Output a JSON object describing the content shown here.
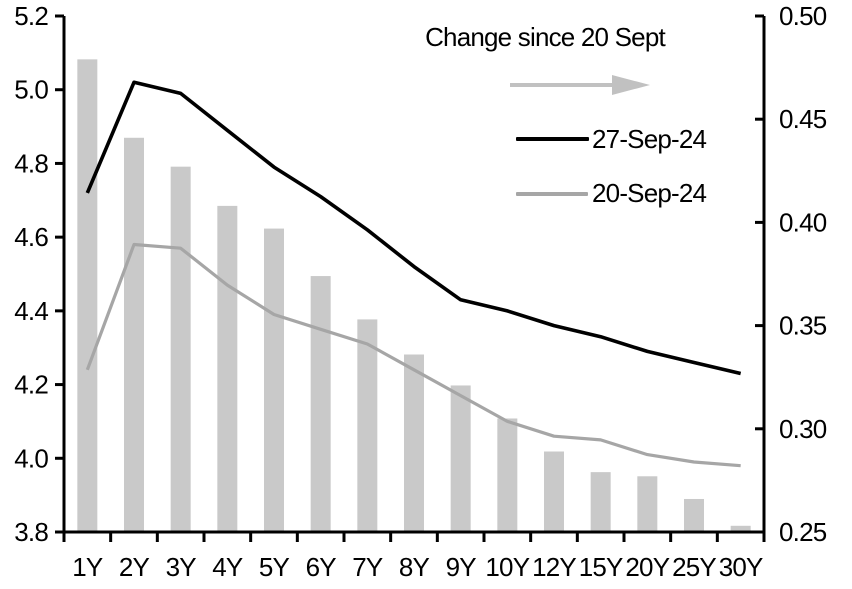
{
  "chart_data": {
    "type": "bar",
    "subtype": "combo-bar-and-lines",
    "categories": [
      "1Y",
      "2Y",
      "3Y",
      "4Y",
      "5Y",
      "6Y",
      "7Y",
      "8Y",
      "9Y",
      "10Y",
      "12Y",
      "15Y",
      "20Y",
      "25Y",
      "30Y"
    ],
    "bars": {
      "name": "Change since 20 Sept",
      "axis": "right",
      "color": "#c9c9c9",
      "values": [
        0.479,
        0.441,
        0.427,
        0.408,
        0.397,
        0.374,
        0.353,
        0.336,
        0.321,
        0.305,
        0.289,
        0.279,
        0.277,
        0.266,
        0.253
      ]
    },
    "lines": [
      {
        "name": "27-Sep-24",
        "axis": "left",
        "color": "#000000",
        "values": [
          4.72,
          5.02,
          4.99,
          4.89,
          4.79,
          4.71,
          4.62,
          4.52,
          4.43,
          4.4,
          4.36,
          4.33,
          4.29,
          4.26,
          4.23
        ]
      },
      {
        "name": "20-Sep-24",
        "axis": "left",
        "color": "#a6a6a6",
        "values": [
          4.24,
          4.58,
          4.57,
          4.47,
          4.39,
          4.35,
          4.31,
          4.24,
          4.17,
          4.1,
          4.06,
          4.05,
          4.01,
          3.99,
          3.98
        ]
      }
    ],
    "axes": {
      "left": {
        "min": 3.8,
        "max": 5.2,
        "step": 0.2,
        "tick_labels": [
          "5.2",
          "5.0",
          "4.8",
          "4.6",
          "4.4",
          "4.2",
          "4.0",
          "3.8"
        ]
      },
      "right": {
        "min": 0.25,
        "max": 0.5,
        "step": 0.05,
        "tick_labels": [
          "0.50",
          "0.45",
          "0.40",
          "0.35",
          "0.30",
          "0.25"
        ]
      }
    },
    "legend": {
      "position": "top-right",
      "arrow_icon": "right-arrow",
      "arrow_color": "#c1c1c1"
    },
    "grid": "off"
  }
}
